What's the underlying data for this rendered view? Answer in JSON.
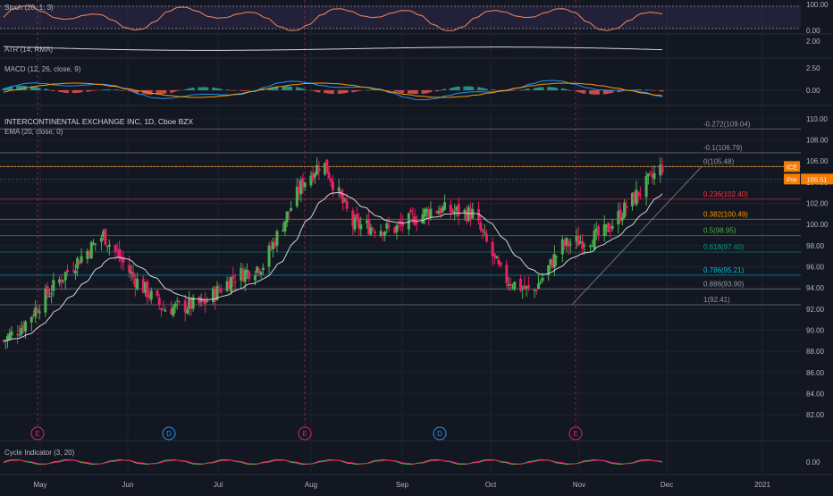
{
  "chart_data": {
    "type": "candlestick",
    "symbol_title": "INTERCONTINENTAL EXCHANGE INC, 1D, Cboe BZX",
    "overlay_label": "EMA (20, close, 0)",
    "indicators": {
      "stoch": {
        "label": "Stoch (20, 1, 3)",
        "ticks": [
          "100.00",
          "0.00"
        ],
        "ylim": [
          0,
          100
        ]
      },
      "atr": {
        "label": "ATR (14, RMA)",
        "ticks": [
          "2.00"
        ]
      },
      "macd": {
        "label": "MACD (12, 26, close, 9)",
        "ticks": [
          "2.50",
          "0.00"
        ]
      },
      "cycle": {
        "label": "Cycle Indicator (3, 20)",
        "ticks": [
          "0.00"
        ]
      }
    },
    "price_axis": {
      "ylim": [
        81.5,
        110.5
      ],
      "ticks": [
        "110.00",
        "108.00",
        "106.00",
        "104.00",
        "102.00",
        "100.00",
        "98.00",
        "96.00",
        "94.00",
        "92.00",
        "90.00",
        "88.00",
        "86.00",
        "84.00",
        "82.00"
      ]
    },
    "x_axis": {
      "labels": [
        "May",
        "Jun",
        "Jul",
        "Aug",
        "Sep",
        "Oct",
        "Nov",
        "Dec",
        "2021"
      ]
    },
    "fib_levels": [
      {
        "label": "-0.272(109.04)",
        "value": 109.04,
        "color": "#9598a1"
      },
      {
        "label": "-0.1(106.79)",
        "value": 106.79,
        "color": "#9598a1"
      },
      {
        "label": "0(105.48)",
        "value": 105.48,
        "color": "#9598a1"
      },
      {
        "label": "0.236(102.40)",
        "value": 102.4,
        "color": "#f23645"
      },
      {
        "label": "0.382(100.49)",
        "value": 100.49,
        "color": "#ff9800"
      },
      {
        "label": "0.5(98.95)",
        "value": 98.95,
        "color": "#4caf50"
      },
      {
        "label": "0.618(97.40)",
        "value": 97.4,
        "color": "#089981"
      },
      {
        "label": "0.786(95.21)",
        "value": 95.21,
        "color": "#00bcd4"
      },
      {
        "label": "0.886(93.90)",
        "value": 93.9,
        "color": "#9598a1"
      },
      {
        "label": "1(92.41)",
        "value": 92.41,
        "color": "#9598a1"
      }
    ],
    "price_tags": [
      {
        "label": "ICE",
        "value": 105.48,
        "color": "#f57c00"
      },
      {
        "label": "Pre",
        "value": 104.3,
        "color": "#f57c00",
        "extra": "105.51"
      }
    ],
    "event_markers": [
      "E",
      "D",
      "E",
      "D",
      "E"
    ],
    "colors": {
      "up": "#4caf50",
      "down": "#e91e63",
      "ema": "#d1d4dc",
      "stoch": "#f48a5a",
      "macd": "#2196f3",
      "signal": "#ff9800"
    }
  }
}
